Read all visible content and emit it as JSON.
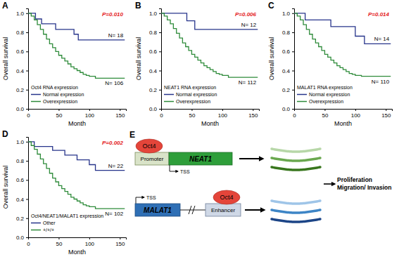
{
  "chart_data": [
    {
      "type": "line",
      "panel": "A",
      "xlabel": "Month",
      "ylabel": "Overall survival",
      "xlim": [
        0,
        160
      ],
      "xticks": [
        0,
        50,
        100,
        150
      ],
      "ylim": [
        0,
        1.05
      ],
      "yticks": [
        {
          "value": 0,
          "label": "0.0"
        },
        {
          "value": 0.2,
          "label": "0.2"
        },
        {
          "value": 0.4,
          "label": "0.4"
        },
        {
          "value": 0.6,
          "label": "0.6"
        },
        {
          "value": 0.8,
          "label": "0.8"
        },
        {
          "value": 1,
          "label": "1.0"
        }
      ],
      "legend": "lower left",
      "legend_title": "Oct4 RNA expression",
      "annotations": [
        "P=0.010",
        "N= 18",
        "N= 106"
      ],
      "series": [
        {
          "name": "Normal expression",
          "color": "#27348b",
          "line_style": "step",
          "x": [
            0,
            12,
            22,
            45,
            75,
            82,
            158
          ],
          "values": [
            1,
            0.94,
            0.89,
            0.83,
            0.78,
            0.72,
            0.72
          ]
        },
        {
          "name": "Overexpression",
          "color": "#2e8b3a",
          "line_style": "step",
          "x": [
            0,
            5,
            10,
            15,
            20,
            25,
            30,
            35,
            40,
            45,
            50,
            55,
            60,
            65,
            70,
            75,
            80,
            85,
            90,
            95,
            100,
            110,
            158
          ],
          "values": [
            1,
            0.97,
            0.93,
            0.88,
            0.83,
            0.78,
            0.73,
            0.68,
            0.64,
            0.6,
            0.56,
            0.53,
            0.5,
            0.47,
            0.44,
            0.42,
            0.4,
            0.38,
            0.36,
            0.35,
            0.34,
            0.32,
            0.32
          ]
        }
      ]
    },
    {
      "type": "line",
      "panel": "B",
      "xlabel": "Month",
      "ylabel": "Overall survival",
      "xlim": [
        0,
        160
      ],
      "xticks": [
        0,
        50,
        100,
        150
      ],
      "ylim": [
        0,
        1.05
      ],
      "yticks": [
        {
          "value": 0,
          "label": "0.0"
        },
        {
          "value": 0.2,
          "label": "0.2"
        },
        {
          "value": 0.4,
          "label": "0.4"
        },
        {
          "value": 0.6,
          "label": "0.6"
        },
        {
          "value": 0.8,
          "label": "0.8"
        },
        {
          "value": 1,
          "label": "1.0"
        }
      ],
      "legend": "lower left",
      "legend_title": "NEAT1 RNA expression",
      "annotations": [
        "P=0.006",
        "N= 12",
        "N= 112"
      ],
      "series": [
        {
          "name": "Normal expression",
          "color": "#27348b",
          "line_style": "step",
          "x": [
            0,
            42,
            55,
            158
          ],
          "values": [
            1,
            0.92,
            0.83,
            0.83
          ]
        },
        {
          "name": "Overexpression",
          "color": "#2e8b3a",
          "line_style": "step",
          "x": [
            0,
            5,
            10,
            15,
            20,
            25,
            30,
            35,
            40,
            45,
            50,
            55,
            60,
            65,
            70,
            75,
            80,
            85,
            90,
            95,
            100,
            110,
            158
          ],
          "values": [
            1,
            0.97,
            0.93,
            0.89,
            0.84,
            0.79,
            0.74,
            0.69,
            0.65,
            0.61,
            0.57,
            0.54,
            0.51,
            0.48,
            0.45,
            0.43,
            0.41,
            0.39,
            0.37,
            0.36,
            0.35,
            0.33,
            0.33
          ]
        }
      ]
    },
    {
      "type": "line",
      "panel": "C",
      "xlabel": "Month",
      "ylabel": "Overall survival",
      "xlim": [
        0,
        160
      ],
      "xticks": [
        0,
        50,
        100,
        150
      ],
      "ylim": [
        0,
        1.05
      ],
      "yticks": [
        {
          "value": 0,
          "label": "0.0"
        },
        {
          "value": 0.2,
          "label": "0.2"
        },
        {
          "value": 0.4,
          "label": "0.4"
        },
        {
          "value": 0.6,
          "label": "0.6"
        },
        {
          "value": 0.8,
          "label": "0.8"
        },
        {
          "value": 1,
          "label": "1.0"
        }
      ],
      "legend": "lower left",
      "legend_title": "MALAT1 RNA expression",
      "annotations": [
        "P=0.014",
        "N= 14",
        "N= 110"
      ],
      "series": [
        {
          "name": "Normal expression",
          "color": "#27348b",
          "line_style": "step",
          "x": [
            0,
            18,
            60,
            100,
            115,
            158
          ],
          "values": [
            1,
            0.93,
            0.86,
            0.76,
            0.68,
            0.68
          ]
        },
        {
          "name": "Overexpression",
          "color": "#2e8b3a",
          "line_style": "step",
          "x": [
            0,
            5,
            10,
            15,
            20,
            25,
            30,
            35,
            40,
            45,
            50,
            55,
            60,
            65,
            70,
            75,
            80,
            85,
            90,
            95,
            100,
            110,
            158
          ],
          "values": [
            1,
            0.97,
            0.93,
            0.88,
            0.83,
            0.78,
            0.73,
            0.69,
            0.65,
            0.61,
            0.57,
            0.54,
            0.51,
            0.48,
            0.45,
            0.43,
            0.41,
            0.39,
            0.37,
            0.36,
            0.35,
            0.34,
            0.34
          ]
        }
      ]
    },
    {
      "type": "line",
      "panel": "D",
      "xlabel": "Month",
      "ylabel": "Overall survival",
      "xlim": [
        0,
        160
      ],
      "xticks": [
        0,
        50,
        100,
        150
      ],
      "ylim": [
        0,
        1.05
      ],
      "yticks": [
        {
          "value": 0,
          "label": "0.0"
        },
        {
          "value": 0.2,
          "label": "0.2"
        },
        {
          "value": 0.4,
          "label": "0.4"
        },
        {
          "value": 0.6,
          "label": "0.6"
        },
        {
          "value": 0.8,
          "label": "0.8"
        },
        {
          "value": 1,
          "label": "1.0"
        }
      ],
      "legend": "lower left",
      "legend_title": "Oct4/NEAT1/MALAT1 expression",
      "annotations": [
        "P=0.002",
        "N= 22",
        "N= 102"
      ],
      "series": [
        {
          "name": "Other",
          "color": "#27348b",
          "line_style": "step",
          "x": [
            0,
            10,
            40,
            60,
            80,
            100,
            110,
            158
          ],
          "values": [
            1,
            0.95,
            0.91,
            0.86,
            0.81,
            0.76,
            0.7,
            0.7
          ]
        },
        {
          "name": "+/+/+",
          "color": "#2e8b3a",
          "line_style": "step",
          "x": [
            0,
            5,
            10,
            15,
            20,
            25,
            30,
            35,
            40,
            45,
            50,
            55,
            60,
            65,
            70,
            75,
            80,
            85,
            90,
            95,
            100,
            110,
            158
          ],
          "values": [
            1,
            0.96,
            0.92,
            0.87,
            0.82,
            0.77,
            0.72,
            0.67,
            0.62,
            0.58,
            0.54,
            0.51,
            0.48,
            0.45,
            0.42,
            0.4,
            0.38,
            0.36,
            0.34,
            0.33,
            0.32,
            0.3,
            0.3
          ]
        }
      ]
    }
  ],
  "diagram": {
    "panel": "E",
    "top": {
      "factor": "Oct4",
      "promoter": "Promoter",
      "gene": "NEAT1",
      "tss": "TSS"
    },
    "bottom": {
      "tss": "TSS",
      "gene": "MALAT1",
      "enhancer": "Enhancer",
      "factor": "Oct4"
    },
    "outcome": [
      "Proliferation",
      "Migration/ Invasion"
    ]
  }
}
